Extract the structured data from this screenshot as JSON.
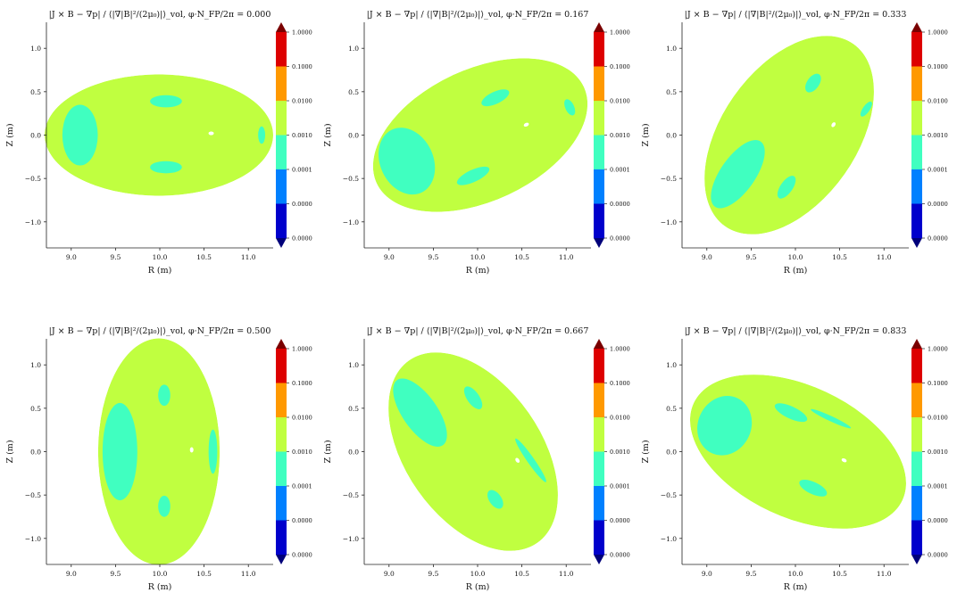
{
  "figure": {
    "xlabel": "R (m)",
    "ylabel": "Z (m)"
  },
  "colorbar": {
    "labels": [
      "0.0000",
      "0.0000",
      "0.0001",
      "0.0010",
      "0.0100",
      "0.1000",
      "1.0000"
    ],
    "colors": [
      "#0000cc",
      "#0080ff",
      "#40ffc0",
      "#c0ff40",
      "#ff9900",
      "#dd0000"
    ],
    "under_color": "#00007a",
    "over_color": "#7a0000"
  },
  "chart_data": [
    {
      "type": "heatmap",
      "title": "|J × B − ∇p| / ⟨|∇|B|²/(2μ₀)|⟩_vol, φ·N_FP/2π = 0.000",
      "phi_fraction": 0.0,
      "xlabel": "R (m)",
      "ylabel": "Z (m)",
      "xlim": [
        8.72,
        11.28
      ],
      "ylim": [
        -1.3,
        1.3
      ],
      "xticks": [
        "9.0",
        "9.5",
        "10.0",
        "10.5",
        "11.0"
      ],
      "yticks": [
        "−1.0",
        "−0.5",
        "0.0",
        "0.5",
        "1.0"
      ],
      "boundary": {
        "center": [
          9.99,
          0.0
        ],
        "semi_axes": [
          1.29,
          0.7
        ],
        "tilt_deg": 0
      },
      "dominant_level": "0.0010–0.0100",
      "low_level": "0.0001–0.0010",
      "low_regions": [
        [
          9.1,
          0.0,
          0.2,
          0.35
        ],
        [
          10.07,
          0.39,
          0.18,
          0.07
        ],
        [
          10.07,
          -0.37,
          0.18,
          0.07
        ],
        [
          11.15,
          0.0,
          0.04,
          0.1
        ]
      ],
      "hole": [
        10.58,
        0.02
      ]
    },
    {
      "type": "heatmap",
      "title": "|J × B − ∇p| / ⟨|∇|B|²/(2μ₀)|⟩_vol, φ·N_FP/2π = 0.167",
      "phi_fraction": 0.167,
      "xlabel": "R (m)",
      "ylabel": "Z (m)",
      "xlim": [
        8.72,
        11.28
      ],
      "ylim": [
        -1.3,
        1.3
      ],
      "xticks": [
        "9.0",
        "9.5",
        "10.0",
        "10.5",
        "11.0"
      ],
      "yticks": [
        "−1.0",
        "−0.5",
        "0.0",
        "0.5",
        "1.0"
      ],
      "boundary": {
        "center": [
          10.03,
          0.0
        ],
        "semi_axes": [
          1.29,
          0.76
        ],
        "tilt_deg": 25
      },
      "dominant_level": "0.0010–0.0100",
      "low_level": "0.0001–0.0010",
      "low_regions": [
        [
          9.2,
          -0.3,
          0.3,
          0.4
        ],
        [
          10.2,
          0.43,
          0.17,
          0.07
        ],
        [
          9.95,
          -0.47,
          0.2,
          0.07
        ],
        [
          11.04,
          0.32,
          0.05,
          0.1
        ]
      ],
      "hole": [
        10.55,
        0.12
      ]
    },
    {
      "type": "heatmap",
      "title": "|J × B − ∇p| / ⟨|∇|B|²/(2μ₀)|⟩_vol, φ·N_FP/2π = 0.333",
      "phi_fraction": 0.333,
      "xlabel": "R (m)",
      "ylabel": "Z (m)",
      "xlim": [
        8.72,
        11.28
      ],
      "ylim": [
        -1.3,
        1.3
      ],
      "xticks": [
        "9.0",
        "9.5",
        "10.0",
        "10.5",
        "11.0"
      ],
      "yticks": [
        "−1.0",
        "−0.5",
        "0.0",
        "0.5",
        "1.0"
      ],
      "boundary": {
        "center": [
          9.93,
          0.0
        ],
        "semi_axes": [
          1.26,
          0.78
        ],
        "tilt_deg": 55
      },
      "dominant_level": "0.0010–0.0100",
      "low_level": "0.0001–0.0010",
      "low_regions": [
        [
          9.35,
          -0.45,
          0.45,
          0.2
        ],
        [
          10.2,
          0.6,
          0.12,
          0.07
        ],
        [
          9.9,
          -0.6,
          0.15,
          0.07
        ],
        [
          10.8,
          0.3,
          0.1,
          0.04
        ]
      ],
      "hole": [
        10.43,
        0.12
      ]
    },
    {
      "type": "heatmap",
      "title": "|J × B − ∇p| / ⟨|∇|B|²/(2μ₀)|⟩_vol, φ·N_FP/2π = 0.500",
      "phi_fraction": 0.5,
      "xlabel": "R (m)",
      "ylabel": "Z (m)",
      "xlim": [
        8.72,
        11.28
      ],
      "ylim": [
        -1.3,
        1.3
      ],
      "xticks": [
        "9.0",
        "9.5",
        "10.0",
        "10.5",
        "11.0"
      ],
      "yticks": [
        "−1.0",
        "−0.5",
        "0.0",
        "0.5",
        "1.0"
      ],
      "boundary": {
        "center": [
          9.99,
          0.0
        ],
        "semi_axes": [
          1.28,
          0.7
        ],
        "tilt_deg": 90
      },
      "dominant_level": "0.0010–0.0100",
      "low_level": "0.0001–0.0010",
      "low_regions": [
        [
          9.55,
          0.0,
          0.55,
          0.2
        ],
        [
          10.05,
          0.65,
          0.12,
          0.07
        ],
        [
          10.05,
          -0.63,
          0.12,
          0.07
        ],
        [
          10.6,
          0.0,
          0.25,
          0.05
        ]
      ],
      "hole": [
        10.36,
        0.02
      ]
    },
    {
      "type": "heatmap",
      "title": "|J × B − ∇p| / ⟨|∇|B|²/(2μ₀)|⟩_vol, φ·N_FP/2π = 0.667",
      "phi_fraction": 0.667,
      "xlabel": "R (m)",
      "ylabel": "Z (m)",
      "xlim": [
        8.72,
        11.28
      ],
      "ylim": [
        -1.3,
        1.3
      ],
      "xticks": [
        "9.0",
        "9.5",
        "10.0",
        "10.5",
        "11.0"
      ],
      "yticks": [
        "−1.0",
        "−0.5",
        "0.0",
        "0.5",
        "1.0"
      ],
      "boundary": {
        "center": [
          9.95,
          0.0
        ],
        "semi_axes": [
          1.26,
          0.78
        ],
        "tilt_deg": -55
      },
      "dominant_level": "0.0010–0.0100",
      "low_level": "0.0001–0.0010",
      "low_regions": [
        [
          9.35,
          0.45,
          0.45,
          0.2
        ],
        [
          9.95,
          0.62,
          0.15,
          0.07
        ],
        [
          10.2,
          -0.55,
          0.12,
          0.07
        ],
        [
          10.6,
          -0.1,
          0.3,
          0.04
        ]
      ],
      "hole": [
        10.45,
        -0.1
      ]
    },
    {
      "type": "heatmap",
      "title": "|J × B − ∇p| / ⟨|∇|B|²/(2μ₀)|⟩_vol, φ·N_FP/2π = 0.833",
      "phi_fraction": 0.833,
      "xlabel": "R (m)",
      "ylabel": "Z (m)",
      "xlim": [
        8.72,
        11.28
      ],
      "ylim": [
        -1.3,
        1.3
      ],
      "xticks": [
        "9.0",
        "9.5",
        "10.0",
        "10.5",
        "11.0"
      ],
      "yticks": [
        "−1.0",
        "−0.5",
        "0.0",
        "0.5",
        "1.0"
      ],
      "boundary": {
        "center": [
          10.03,
          0.0
        ],
        "semi_axes": [
          1.3,
          0.76
        ],
        "tilt_deg": -25
      },
      "dominant_level": "0.0010–0.0100",
      "low_level": "0.0001–0.0010",
      "low_regions": [
        [
          9.2,
          0.3,
          0.3,
          0.35
        ],
        [
          9.95,
          0.45,
          0.2,
          0.07
        ],
        [
          10.2,
          -0.42,
          0.17,
          0.07
        ],
        [
          10.4,
          0.38,
          0.25,
          0.03
        ]
      ],
      "hole": [
        10.55,
        -0.1
      ]
    }
  ]
}
